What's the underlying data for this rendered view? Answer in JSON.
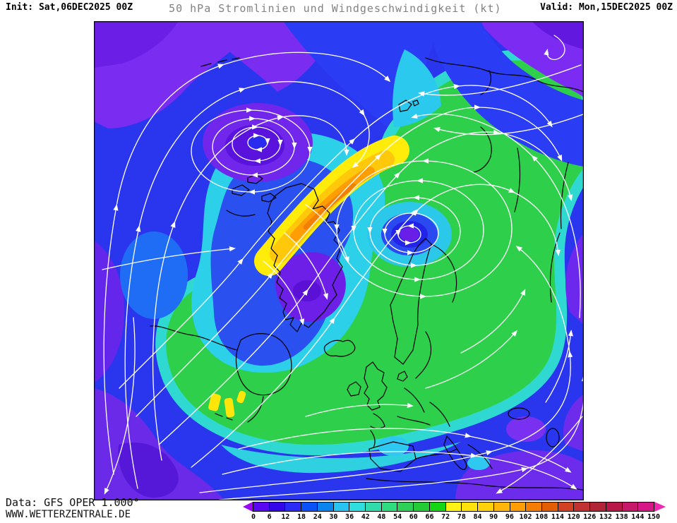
{
  "header": {
    "init_label": "Init:",
    "init_value": "Sat,06DEC2025 00Z",
    "title": "50 hPa Stromlinien und Windgeschwindigkeit (kt)",
    "valid_label": "Valid:",
    "valid_value": "Mon,15DEC2025 00Z"
  },
  "footer": {
    "data_line": "Data: GFS OPER 1.000°",
    "site": "WWW.WETTERZENTRALE.DE"
  },
  "colorbar": {
    "unit": "kt",
    "min": 0,
    "max": 150,
    "step": 6,
    "ticks": [
      "0",
      "6",
      "12",
      "18",
      "24",
      "30",
      "36",
      "42",
      "48",
      "54",
      "60",
      "66",
      "72",
      "78",
      "84",
      "90",
      "96",
      "102",
      "108",
      "114",
      "120",
      "126",
      "132",
      "138",
      "144",
      "150"
    ],
    "segment_colors": [
      "#5a07f2",
      "#3407e8",
      "#2b2bf5",
      "#0a52f7",
      "#0a85f0",
      "#28c3f0",
      "#30dede",
      "#30dcab",
      "#2fdc80",
      "#2fd058",
      "#23cb37",
      "#15d615",
      "#fff315",
      "#ffe30a",
      "#ffd20a",
      "#ffb60a",
      "#ff9d05",
      "#f57d05",
      "#e35d05",
      "#d24222",
      "#c23232",
      "#b22536",
      "#b81848",
      "#c61768",
      "#d61788"
    ],
    "left_arrow_color": "#9b07f7",
    "right_arrow_color": "#ef28b0"
  }
}
